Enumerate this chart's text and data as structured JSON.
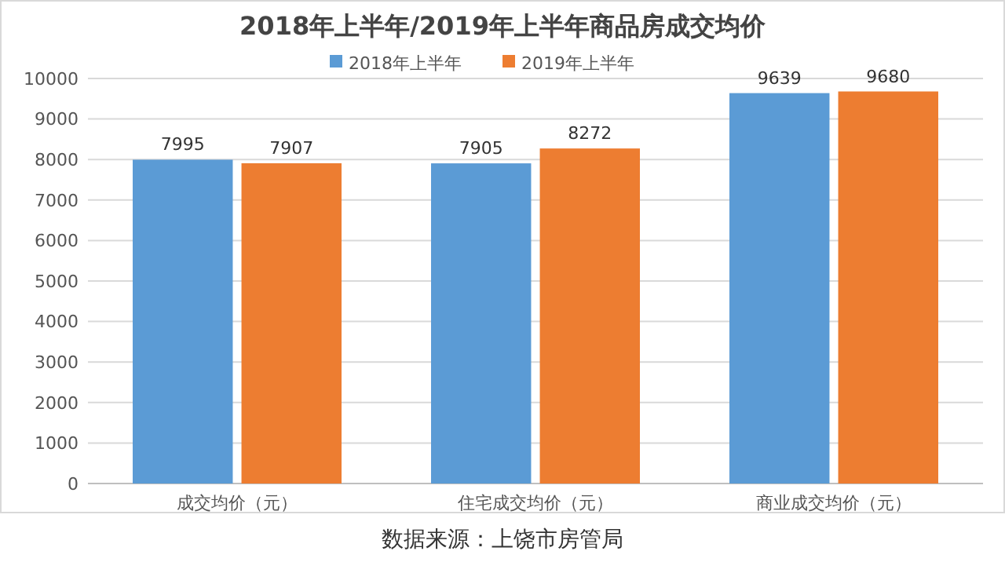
{
  "chart_data": {
    "type": "bar",
    "title": "2018年上半年/2019年上半年商品房成交均价",
    "categories": [
      "成交均价（元）",
      "住宅成交均价（元）",
      "商业成交均价（元）"
    ],
    "series": [
      {
        "name": "2018年上半年",
        "color": "#5b9bd5",
        "values": [
          7995,
          7905,
          9639
        ]
      },
      {
        "name": "2019年上半年",
        "color": "#ed7d31",
        "values": [
          7907,
          8272,
          9680
        ]
      }
    ],
    "ylim": [
      0,
      10000
    ],
    "yticks": [
      0,
      1000,
      2000,
      3000,
      4000,
      5000,
      6000,
      7000,
      8000,
      9000,
      10000
    ],
    "grid": "y",
    "legend": "top",
    "data_labels": true,
    "annotations": [
      "数据来源：上饶市房管局"
    ]
  }
}
